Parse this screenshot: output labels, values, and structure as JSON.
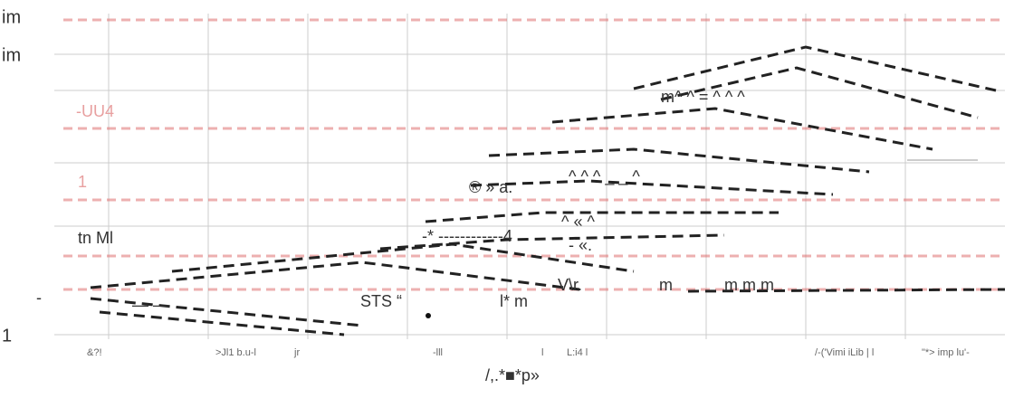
{
  "axis_labels": {
    "left": [
      "im",
      "im",
      "-UU4",
      "1",
      "tn Ml",
      "-",
      "1"
    ]
  },
  "annotations": [
    "m^ ^ = ^ ^ ^",
    "® » a.",
    "^ ^ ^ _ _ ^",
    "^ « ^",
    "-* ------------4",
    "- «.",
    "V\\r.",
    "m",
    "m m m",
    "STS “",
    "l* m",
    "— —"
  ],
  "bottom_labels": [
    "&?!",
    ">Jl1 b.u-l",
    "jr",
    "-lll",
    "l",
    "L:i4 l",
    "/-('Vimi iLib | l",
    "\"*> imp lu'-"
  ],
  "footer": "/,.*■*p»"
}
